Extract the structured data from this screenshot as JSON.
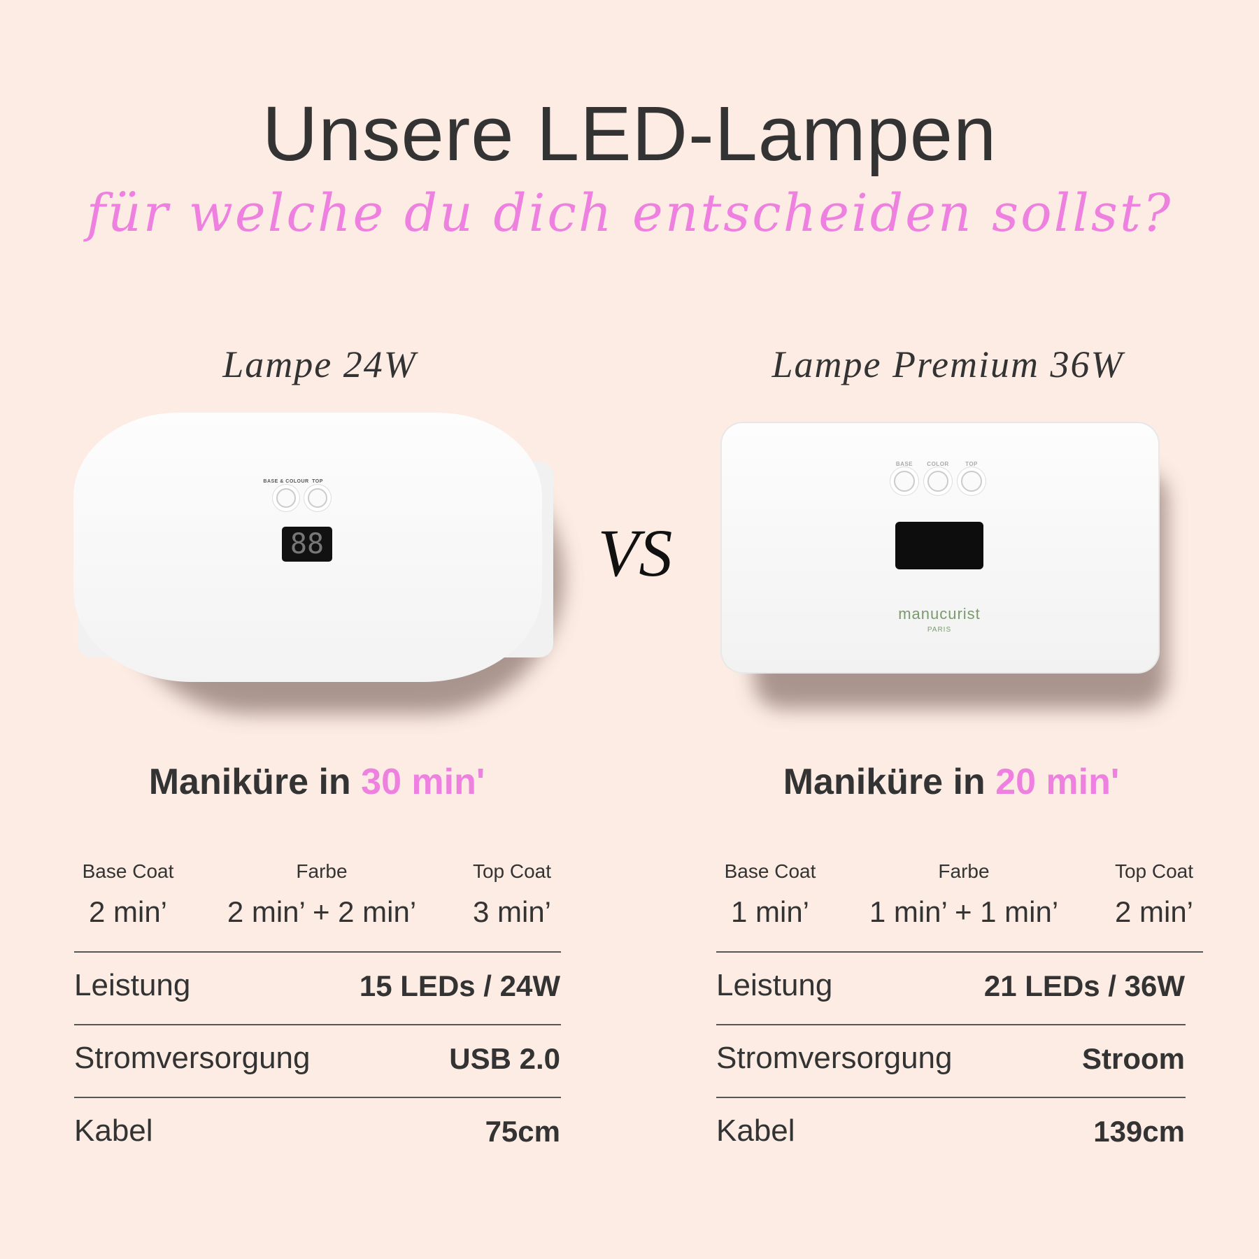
{
  "header": {
    "title": "Unsere LED-Lampen",
    "subtitle": "für welche du dich entscheiden sollst?"
  },
  "vs": "VS",
  "colors": {
    "background": "#fcece3",
    "accent_pink": "#ee80e0",
    "text": "#333333"
  },
  "lamps": [
    {
      "name": "Lampe 24W",
      "buttons": [
        "BASE & COLOUR",
        "TOP"
      ],
      "manicure_prefix": "Maniküre in",
      "manicure_time": "30 min'",
      "steps": [
        {
          "label": "Base Coat",
          "value": "2 min’"
        },
        {
          "label": "Farbe",
          "value": "2 min’ + 2 min’"
        },
        {
          "label": "Top Coat",
          "value": "3 min’"
        }
      ],
      "specs": [
        {
          "label": "Leistung",
          "value": "15 LEDs / 24W"
        },
        {
          "label": "Stromversorgung",
          "value": "USB 2.0"
        },
        {
          "label": "Kabel",
          "value": "75cm"
        }
      ]
    },
    {
      "name": "Lampe Premium 36W",
      "buttons": [
        "BASE",
        "COLOR",
        "TOP"
      ],
      "brand": "manucurist",
      "brand_sub": "PARIS",
      "manicure_prefix": "Maniküre in",
      "manicure_time": "20 min'",
      "steps": [
        {
          "label": "Base Coat",
          "value": "1 min’"
        },
        {
          "label": "Farbe",
          "value": "1 min’ + 1 min’"
        },
        {
          "label": "Top Coat",
          "value": "2 min’"
        }
      ],
      "specs": [
        {
          "label": "Leistung",
          "value": "21 LEDs / 36W"
        },
        {
          "label": "Stromversorgung",
          "value": "Stroom"
        },
        {
          "label": "Kabel",
          "value": "139cm"
        }
      ]
    }
  ]
}
